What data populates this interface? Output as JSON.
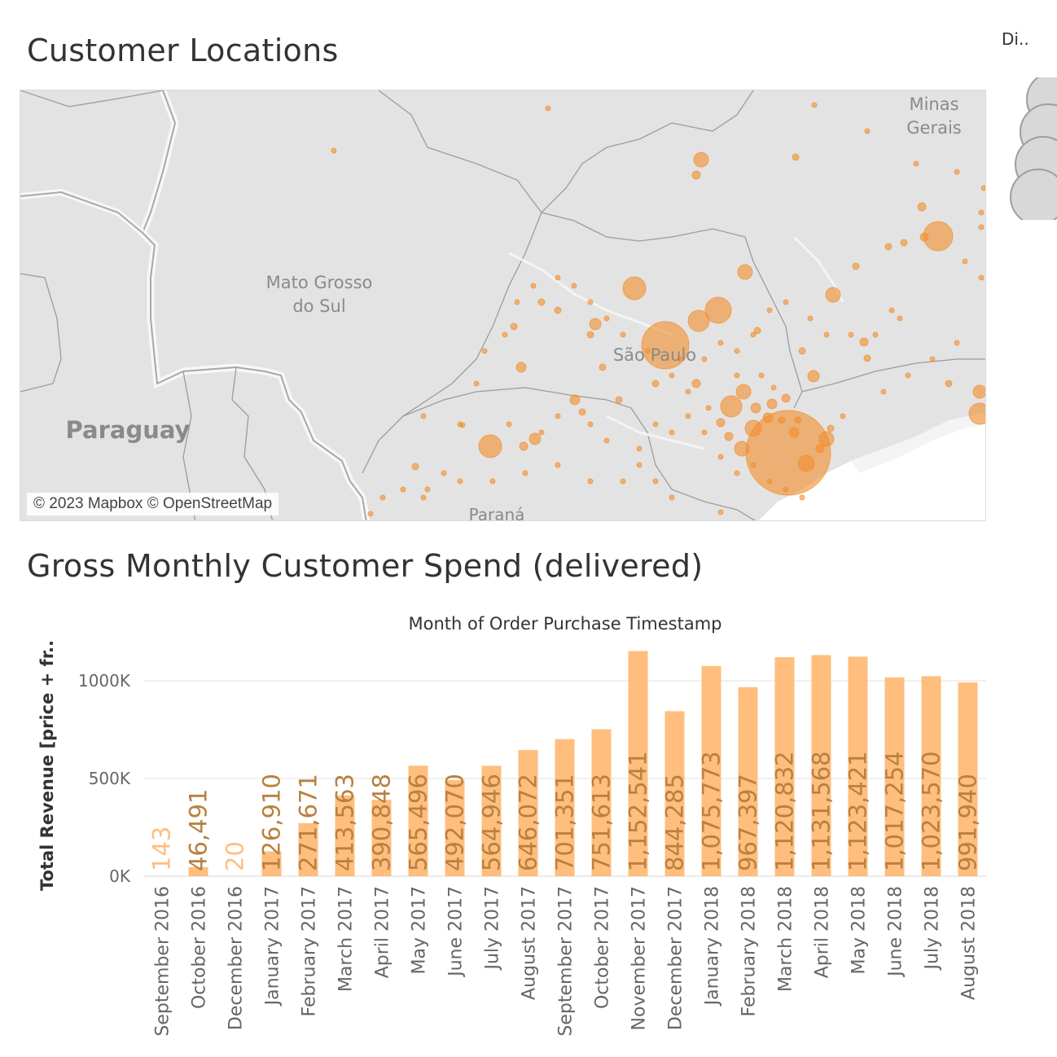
{
  "map_sheet": {
    "title": "Customer Locations",
    "attribution": "© 2023 Mapbox © OpenStreetMap",
    "labels": {
      "minas_gerais": [
        "Minas",
        "Gerais"
      ],
      "mato_grosso_do_sul": [
        "Mato Grosso",
        "do Sul"
      ],
      "sao_paulo": "São Paulo",
      "paraguay": "Paraguay",
      "parana": "Paraná"
    },
    "mark_color": "#f28e2b"
  },
  "legend": {
    "title": "Di.."
  },
  "chart_sheet": {
    "title": "Gross Monthly Customer Spend (delivered)"
  },
  "chart_data": {
    "type": "bar",
    "title": "Month of Order Purchase Timestamp",
    "ylabel": "Total Revenue [price + fr..",
    "ylim": [
      0,
      1200000
    ],
    "yticks": [
      {
        "value": 0,
        "label": "0K"
      },
      {
        "value": 500000,
        "label": "500K"
      },
      {
        "value": 1000000,
        "label": "1000K"
      }
    ],
    "bar_color": "#ffbe7d",
    "label_color": "#b9803f",
    "categories": [
      "September 2016",
      "October 2016",
      "December 2016",
      "January 2017",
      "February 2017",
      "March 2017",
      "April 2017",
      "May 2017",
      "June 2017",
      "July 2017",
      "August 2017",
      "September 2017",
      "October 2017",
      "November 2017",
      "December 2017",
      "January 2018",
      "February 2018",
      "March 2018",
      "April 2018",
      "May 2018",
      "June 2018",
      "July 2018",
      "August 2018"
    ],
    "values": [
      143,
      46491,
      20,
      126910,
      271671,
      413563,
      390848,
      565496,
      492070,
      564946,
      646072,
      701351,
      751613,
      1152541,
      844285,
      1075773,
      967397,
      1120832,
      1131568,
      1123421,
      1017254,
      1023570,
      991940
    ],
    "value_labels": [
      "143",
      "46,491",
      "20",
      "126,910",
      "271,671",
      "413,563",
      "390,848",
      "565,496",
      "492,070",
      "564,946",
      "646,072",
      "701,351",
      "751,613",
      "1,152,541",
      "844,285",
      "1,075,773",
      "967,397",
      "1,120,832",
      "1,131,568",
      "1,123,421",
      "1,017,254",
      "1,023,570",
      "991,940"
    ],
    "grid": true,
    "legend": "none"
  }
}
